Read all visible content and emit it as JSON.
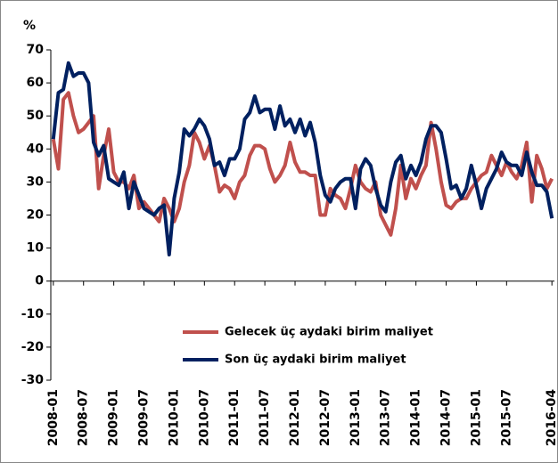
{
  "chart_data": {
    "type": "line",
    "title": "%",
    "categories": [
      "2008-01",
      null,
      null,
      null,
      null,
      null,
      "2008-07",
      null,
      null,
      null,
      null,
      null,
      "2009-01",
      null,
      null,
      null,
      null,
      null,
      "2009-07",
      null,
      null,
      null,
      null,
      null,
      "2010-01",
      null,
      null,
      null,
      null,
      null,
      "2010-07",
      null,
      null,
      null,
      null,
      null,
      "2011-01",
      null,
      null,
      null,
      null,
      null,
      "2011-07",
      null,
      null,
      null,
      null,
      null,
      "2012-01",
      null,
      null,
      null,
      null,
      null,
      "2012-07",
      null,
      null,
      null,
      null,
      null,
      "2013-01",
      null,
      null,
      null,
      null,
      null,
      "2013-07",
      null,
      null,
      null,
      null,
      null,
      "2014-01",
      null,
      null,
      null,
      null,
      null,
      "2014-07",
      null,
      null,
      null,
      null,
      null,
      "2015-01",
      null,
      null,
      null,
      null,
      null,
      "2015-07",
      null,
      null,
      null,
      null,
      null,
      null,
      null,
      null,
      "2016-04"
    ],
    "series": [
      {
        "name": "Gelecek üç aydaki birim maliyet",
        "color": "#c0504d",
        "values": [
          43,
          34,
          55,
          57,
          50,
          45,
          46,
          48,
          50,
          28,
          38,
          46,
          33,
          30,
          30,
          28,
          32,
          22,
          24,
          22,
          20,
          18,
          25,
          22,
          18,
          22,
          30,
          35,
          45,
          42,
          37,
          41,
          35,
          27,
          29,
          28,
          25,
          30,
          32,
          38,
          41,
          41,
          40,
          34,
          30,
          32,
          35,
          42,
          36,
          33,
          33,
          32,
          32,
          20,
          20,
          28,
          26,
          25,
          22,
          28,
          35,
          30,
          28,
          27,
          30,
          20,
          17,
          14,
          22,
          35,
          25,
          31,
          28,
          32,
          35,
          48,
          40,
          30,
          23,
          22,
          24,
          25,
          25,
          28,
          30,
          32,
          33,
          38,
          35,
          32,
          36,
          33,
          31,
          35,
          42,
          24,
          38,
          34,
          28,
          31
        ]
      },
      {
        "name": "Son üç aydaki birim maliyet",
        "color": "#002060",
        "values": [
          43,
          57,
          58,
          66,
          62,
          63,
          63,
          60,
          42,
          38,
          41,
          31,
          30,
          29,
          33,
          22,
          30,
          26,
          22,
          21,
          20,
          22,
          23,
          8,
          25,
          33,
          46,
          44,
          46,
          49,
          47,
          43,
          35,
          36,
          32,
          37,
          37,
          40,
          49,
          51,
          56,
          51,
          52,
          52,
          46,
          53,
          47,
          49,
          45,
          49,
          44,
          48,
          42,
          32,
          26,
          24,
          28,
          30,
          31,
          31,
          22,
          34,
          37,
          35,
          28,
          23,
          21,
          30,
          36,
          38,
          31,
          35,
          32,
          36,
          43,
          47,
          47,
          45,
          37,
          28,
          29,
          25,
          28,
          35,
          29,
          22,
          28,
          31,
          34,
          39,
          36,
          35,
          35,
          32,
          39,
          33,
          29,
          29,
          27,
          19
        ]
      }
    ],
    "ylim": [
      -30,
      70
    ],
    "yticks": [
      -30,
      -20,
      -10,
      0,
      10,
      20,
      30,
      40,
      50,
      60,
      70
    ]
  }
}
